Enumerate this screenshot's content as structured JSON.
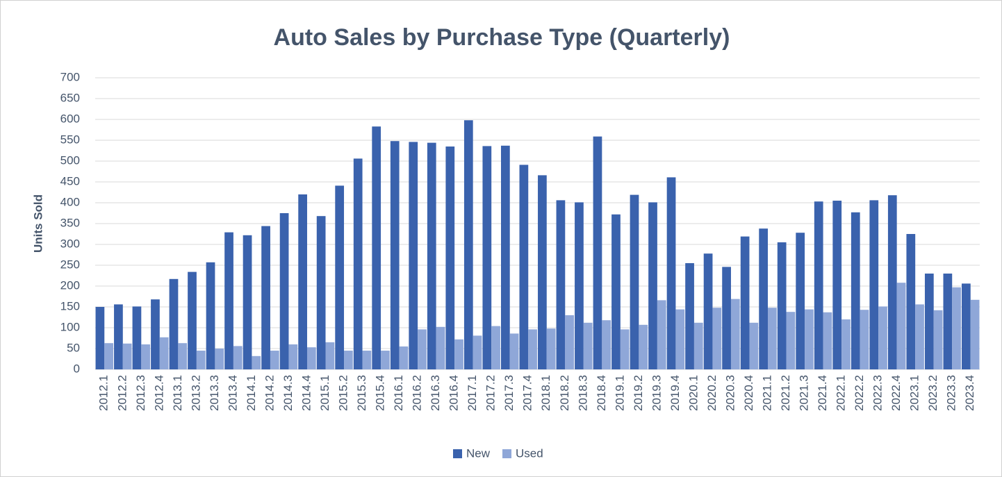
{
  "chart_data": {
    "type": "bar",
    "title": "Auto Sales by Purchase Type (Quarterly)",
    "y_label": "Units Sold",
    "categories": [
      "2012.1",
      "2012.2",
      "2012.3",
      "2012.4",
      "2013.1",
      "2013.2",
      "2013.3",
      "2013.4",
      "2014.1",
      "2014.2",
      "2014.3",
      "2014.4",
      "2015.1",
      "2015.2",
      "2015.3",
      "2015.4",
      "2016.1",
      "2016.2",
      "2016.3",
      "2016.4",
      "2017.1",
      "2017.2",
      "2017.3",
      "2017.4",
      "2018.1",
      "2018.2",
      "2018.3",
      "2018.4",
      "2019.1",
      "2019.2",
      "2019.3",
      "2019.4",
      "2020.1",
      "2020.2",
      "2020.3",
      "2020.4",
      "2021.1",
      "2021.2",
      "2021.3",
      "2021.4",
      "2022.1",
      "2022.2",
      "2022.3",
      "2022.4",
      "2023.1",
      "2023.2",
      "2023.3",
      "2023.4"
    ],
    "series": [
      {
        "name": "New",
        "color": "#3a62ad",
        "values": [
          150,
          156,
          151,
          168,
          217,
          234,
          257,
          329,
          322,
          344,
          375,
          420,
          368,
          441,
          506,
          583,
          548,
          546,
          544,
          535,
          598,
          536,
          537,
          491,
          466,
          406,
          401,
          559,
          372,
          419,
          401,
          461,
          255,
          278,
          246,
          319,
          338,
          305,
          328,
          403,
          405,
          377,
          406,
          418,
          325,
          230,
          230,
          206
        ]
      },
      {
        "name": "Used",
        "color": "#8fa7d8",
        "values": [
          63,
          62,
          60,
          77,
          63,
          45,
          50,
          56,
          32,
          45,
          60,
          53,
          65,
          45,
          45,
          45,
          55,
          96,
          102,
          72,
          81,
          104,
          86,
          96,
          98,
          130,
          112,
          118,
          96,
          107,
          166,
          144,
          112,
          148,
          169,
          112,
          148,
          138,
          144,
          137,
          120,
          143,
          151,
          208,
          156,
          142,
          197,
          167
        ]
      }
    ],
    "ylim": [
      0,
      700
    ],
    "yticks": [
      0,
      50,
      100,
      150,
      200,
      250,
      300,
      350,
      400,
      450,
      500,
      550,
      600,
      650,
      700
    ],
    "grid": true,
    "legend": "bottom"
  }
}
